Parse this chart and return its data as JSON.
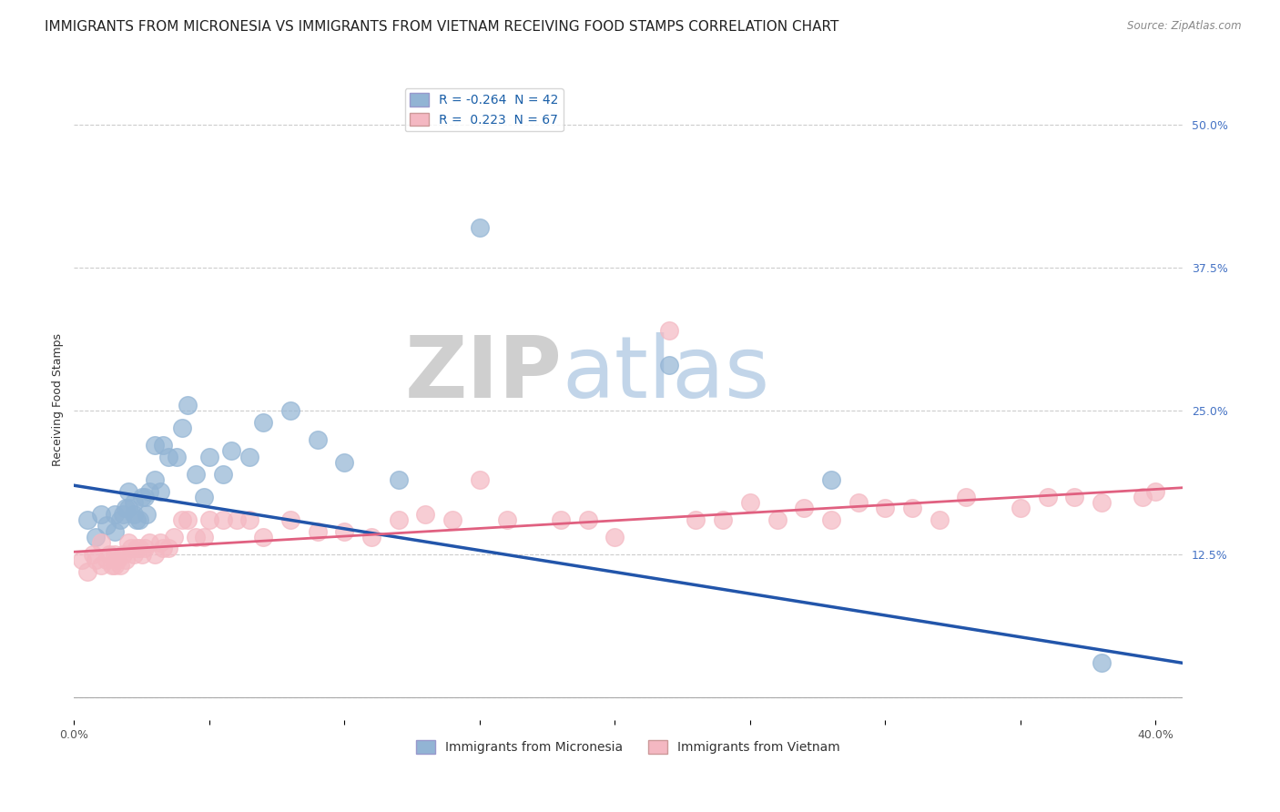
{
  "title": "IMMIGRANTS FROM MICRONESIA VS IMMIGRANTS FROM VIETNAM RECEIVING FOOD STAMPS CORRELATION CHART",
  "source": "Source: ZipAtlas.com",
  "ylabel": "Receiving Food Stamps",
  "legend_blue_label": "Immigrants from Micronesia",
  "legend_pink_label": "Immigrants from Vietnam",
  "legend_blue_r": "R = -0.264",
  "legend_blue_n": "N = 42",
  "legend_pink_r": "R =  0.223",
  "legend_pink_n": "N = 67",
  "watermark_zip": "ZIP",
  "watermark_atlas": "atlas",
  "blue_color": "#92b4d4",
  "pink_color": "#f4b8c2",
  "blue_line_color": "#2255aa",
  "pink_line_color": "#e06080",
  "right_yticks": [
    0.0,
    0.125,
    0.25,
    0.375,
    0.5
  ],
  "right_yticklabels": [
    "",
    "12.5%",
    "25.0%",
    "37.5%",
    "50.0%"
  ],
  "xlim": [
    0.0,
    0.41
  ],
  "ylim": [
    -0.02,
    0.54
  ],
  "blue_scatter_x": [
    0.005,
    0.008,
    0.01,
    0.012,
    0.015,
    0.015,
    0.017,
    0.018,
    0.019,
    0.02,
    0.02,
    0.022,
    0.022,
    0.023,
    0.024,
    0.025,
    0.026,
    0.027,
    0.028,
    0.03,
    0.03,
    0.032,
    0.033,
    0.035,
    0.038,
    0.04,
    0.042,
    0.045,
    0.048,
    0.05,
    0.055,
    0.058,
    0.065,
    0.07,
    0.08,
    0.09,
    0.1,
    0.12,
    0.15,
    0.22,
    0.28,
    0.38
  ],
  "blue_scatter_y": [
    0.155,
    0.14,
    0.16,
    0.15,
    0.16,
    0.145,
    0.155,
    0.16,
    0.165,
    0.18,
    0.165,
    0.16,
    0.17,
    0.155,
    0.155,
    0.175,
    0.175,
    0.16,
    0.18,
    0.22,
    0.19,
    0.18,
    0.22,
    0.21,
    0.21,
    0.235,
    0.255,
    0.195,
    0.175,
    0.21,
    0.195,
    0.215,
    0.21,
    0.24,
    0.25,
    0.225,
    0.205,
    0.19,
    0.41,
    0.29,
    0.19,
    0.03
  ],
  "pink_scatter_x": [
    0.003,
    0.005,
    0.007,
    0.008,
    0.01,
    0.01,
    0.012,
    0.013,
    0.014,
    0.015,
    0.015,
    0.016,
    0.017,
    0.018,
    0.019,
    0.02,
    0.021,
    0.022,
    0.023,
    0.024,
    0.025,
    0.026,
    0.028,
    0.03,
    0.032,
    0.033,
    0.035,
    0.037,
    0.04,
    0.042,
    0.045,
    0.048,
    0.05,
    0.055,
    0.06,
    0.065,
    0.07,
    0.08,
    0.09,
    0.1,
    0.11,
    0.12,
    0.13,
    0.14,
    0.15,
    0.16,
    0.18,
    0.19,
    0.2,
    0.22,
    0.23,
    0.24,
    0.25,
    0.26,
    0.27,
    0.28,
    0.29,
    0.3,
    0.31,
    0.32,
    0.33,
    0.35,
    0.36,
    0.37,
    0.38,
    0.395,
    0.4
  ],
  "pink_scatter_y": [
    0.12,
    0.11,
    0.125,
    0.12,
    0.135,
    0.115,
    0.12,
    0.125,
    0.115,
    0.115,
    0.125,
    0.12,
    0.115,
    0.125,
    0.12,
    0.135,
    0.13,
    0.125,
    0.13,
    0.13,
    0.125,
    0.13,
    0.135,
    0.125,
    0.135,
    0.13,
    0.13,
    0.14,
    0.155,
    0.155,
    0.14,
    0.14,
    0.155,
    0.155,
    0.155,
    0.155,
    0.14,
    0.155,
    0.145,
    0.145,
    0.14,
    0.155,
    0.16,
    0.155,
    0.19,
    0.155,
    0.155,
    0.155,
    0.14,
    0.32,
    0.155,
    0.155,
    0.17,
    0.155,
    0.165,
    0.155,
    0.17,
    0.165,
    0.165,
    0.155,
    0.175,
    0.165,
    0.175,
    0.175,
    0.17,
    0.175,
    0.18
  ],
  "blue_trendline_x": [
    0.0,
    0.41
  ],
  "blue_trendline_y": [
    0.185,
    0.03
  ],
  "pink_trendline_x": [
    0.0,
    0.41
  ],
  "pink_trendline_y": [
    0.127,
    0.183
  ],
  "bg_color": "#ffffff",
  "grid_color": "#cccccc",
  "title_fontsize": 11,
  "axis_label_fontsize": 9,
  "tick_fontsize": 9,
  "legend_fontsize": 10
}
